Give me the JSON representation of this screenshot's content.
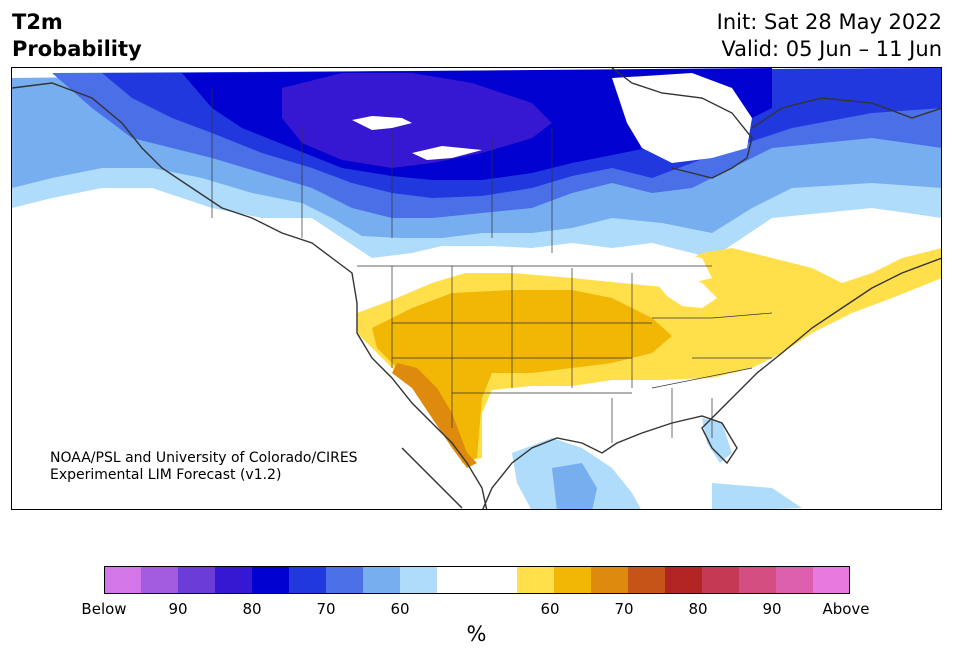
{
  "header": {
    "var_title": "T2m",
    "prob_title": "Probability",
    "init_text": "Init: Sat 28 May 2022",
    "valid_text": "Valid: 05 Jun – 11 Jun"
  },
  "map": {
    "region": "North America",
    "credit_line1": "NOAA/PSL and University of Colorado/CIRES",
    "credit_line2": "Experimental LIM Forecast (v1.2)"
  },
  "colorbar": {
    "unit_label": "%",
    "tick_labels": [
      "Below",
      "90",
      "80",
      "70",
      "60",
      "60",
      "70",
      "80",
      "90",
      "Above"
    ],
    "below_colors": [
      "#d376e8",
      "#a35be0",
      "#6c3cd8",
      "#3618d2",
      "#0000d0",
      "#2038de",
      "#4b6fe6",
      "#76aef0",
      "#aedcfa"
    ],
    "neutral_color": "#ffffff",
    "above_colors": [
      "#ffe04b",
      "#f2b705",
      "#de8a0c",
      "#c65418",
      "#b22424",
      "#c43a55",
      "#d34d80",
      "#dc5fae",
      "#e879de"
    ]
  }
}
